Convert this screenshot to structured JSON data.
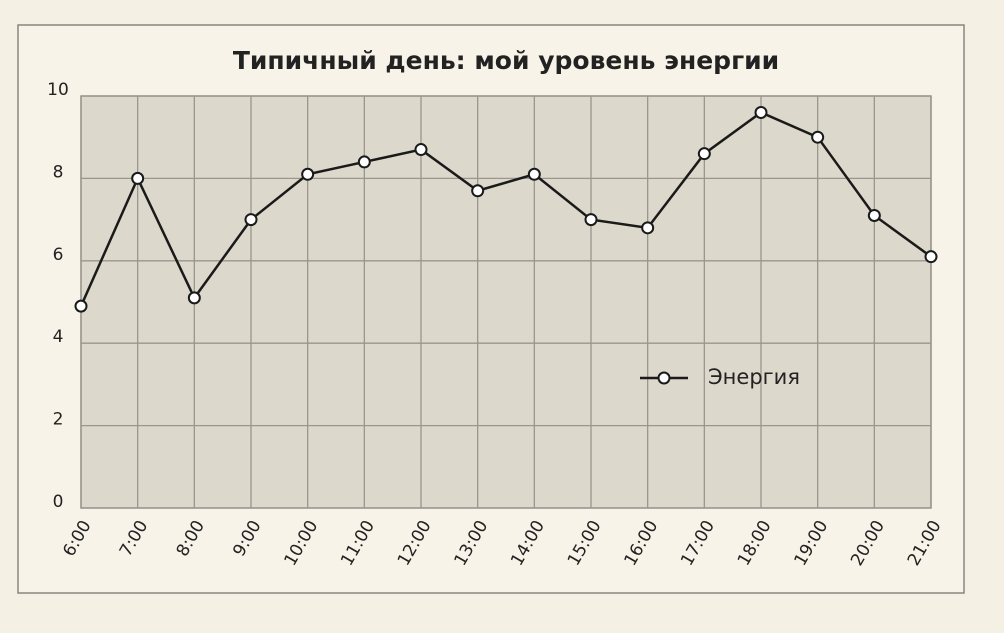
{
  "chart_data": {
    "type": "line",
    "title": "Типичный день: мой уровень энергии",
    "categories": [
      "6:00",
      "7:00",
      "8:00",
      "9:00",
      "10:00",
      "11:00",
      "12:00",
      "13:00",
      "14:00",
      "15:00",
      "16:00",
      "17:00",
      "18:00",
      "19:00",
      "20:00",
      "21:00"
    ],
    "series": [
      {
        "name": "Энергия",
        "color": "#1a1a1a",
        "values": [
          4.9,
          8.0,
          5.1,
          7.0,
          8.1,
          8.4,
          8.7,
          7.7,
          8.1,
          7.0,
          6.8,
          8.6,
          9.6,
          9.0,
          7.1,
          6.1
        ]
      }
    ],
    "ylim": [
      0,
      10
    ],
    "yticks": [
      0,
      2,
      4,
      6,
      8,
      10
    ],
    "grid": true,
    "legend": "lower right"
  }
}
